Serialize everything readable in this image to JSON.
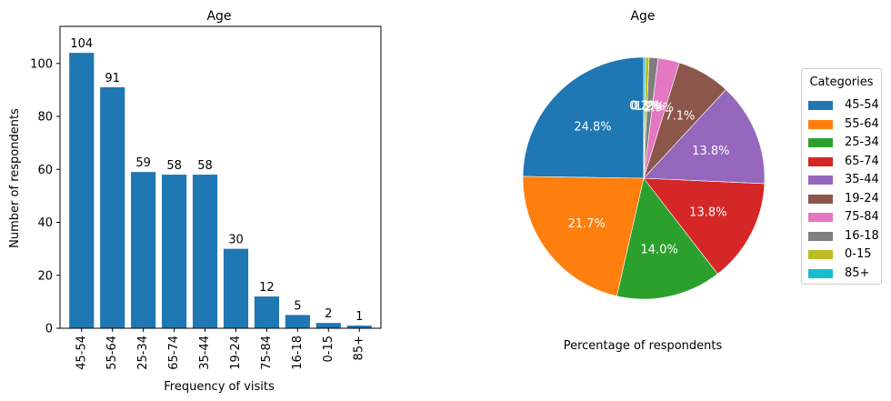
{
  "chart_data": [
    {
      "type": "bar",
      "title": "Age",
      "xlabel": "Frequency of visits",
      "ylabel": "Number of respondents",
      "categories": [
        "45-54",
        "55-64",
        "25-34",
        "65-74",
        "35-44",
        "19-24",
        "75-84",
        "16-18",
        "0-15",
        "85+"
      ],
      "values": [
        104,
        91,
        59,
        58,
        58,
        30,
        12,
        5,
        2,
        1
      ],
      "data_labels": [
        "104",
        "91",
        "59",
        "58",
        "58",
        "30",
        "12",
        "5",
        "2",
        "1"
      ],
      "ylim": [
        0,
        114
      ],
      "yticks": [
        0,
        20,
        40,
        60,
        80,
        100
      ],
      "color": "#1f77b4",
      "grid": false
    },
    {
      "type": "pie",
      "title": "Age",
      "xlabel": "Percentage of respondents",
      "categories": [
        "45-54",
        "55-64",
        "25-34",
        "65-74",
        "35-44",
        "19-24",
        "75-84",
        "16-18",
        "0-15",
        "85+"
      ],
      "values": [
        104,
        91,
        59,
        58,
        58,
        30,
        12,
        5,
        2,
        1
      ],
      "percent_labels": [
        "24.8%",
        "21.7%",
        "14.0%",
        "13.8%",
        "13.8%",
        "7.1%",
        "2.9%",
        "1.2%",
        "0.5%",
        "0.2%"
      ],
      "colors": [
        "#1f77b4",
        "#ff7f0e",
        "#2ca02c",
        "#d62728",
        "#9467bd",
        "#8c564b",
        "#e377c2",
        "#7f7f7f",
        "#bcbd22",
        "#17becf"
      ],
      "start_angle": 90,
      "legend_title": "Categories",
      "legend_position": "right"
    }
  ]
}
